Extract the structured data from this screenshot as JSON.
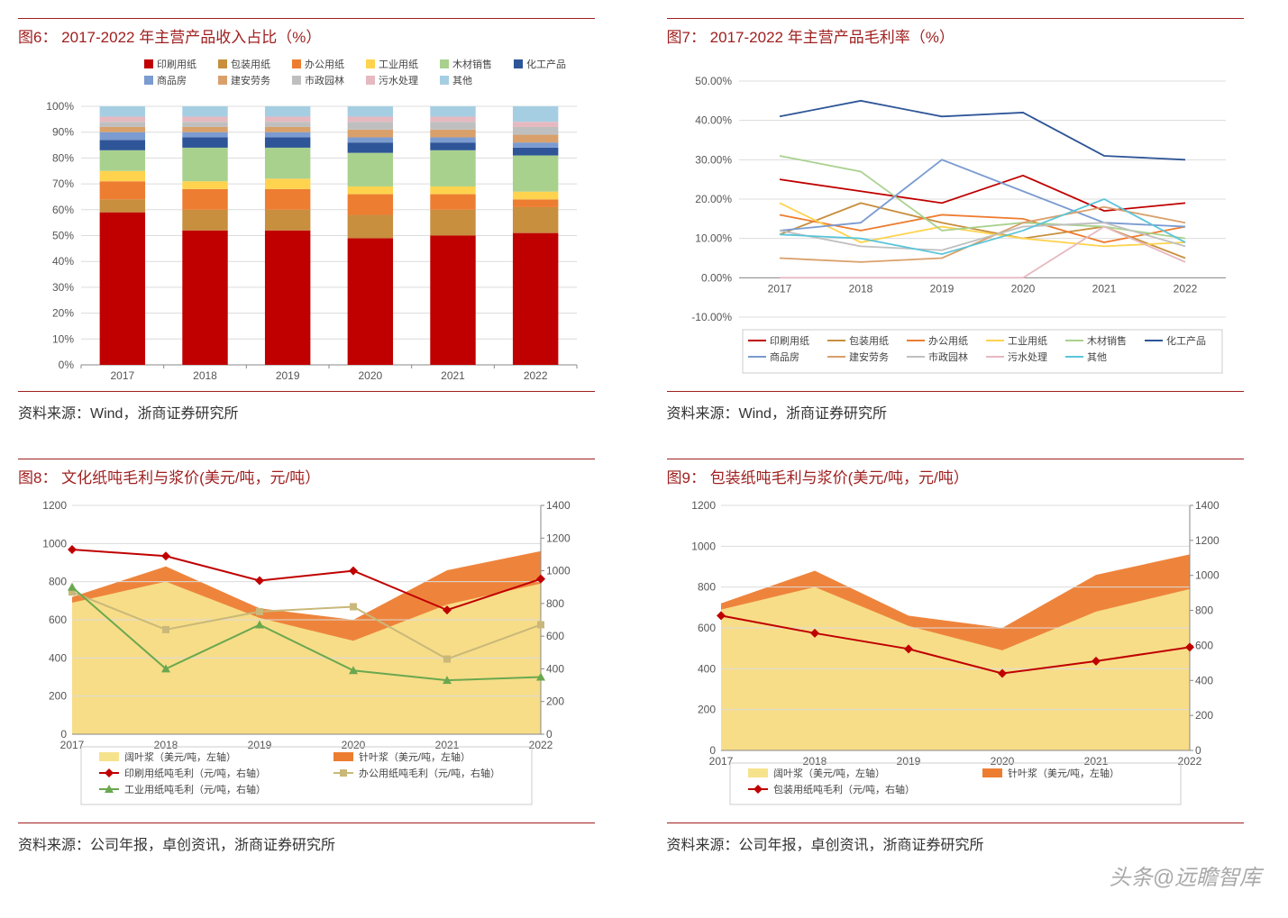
{
  "watermark": "头条@远瞻智库",
  "fig6": {
    "title": "图6：   2017-2022 年主营产品收入占比（%）",
    "source": "资料来源：Wind，浙商证券研究所",
    "type": "stacked-bar",
    "categories": [
      "2017",
      "2018",
      "2019",
      "2020",
      "2021",
      "2022"
    ],
    "ylim": [
      0,
      100
    ],
    "ytick_step": 10,
    "ytick_suffix": "%",
    "legend_cols": 6,
    "series": [
      {
        "name": "印刷用纸",
        "color": "#c00000",
        "values": [
          59,
          52,
          52,
          49,
          50,
          51
        ]
      },
      {
        "name": "包装用纸",
        "color": "#c78f3e",
        "values": [
          5,
          8,
          8,
          9,
          10,
          10
        ]
      },
      {
        "name": "办公用纸",
        "color": "#ed7d31",
        "values": [
          7,
          8,
          8,
          8,
          6,
          3
        ]
      },
      {
        "name": "工业用纸",
        "color": "#ffd34e",
        "values": [
          4,
          3,
          4,
          3,
          3,
          3
        ]
      },
      {
        "name": "木材销售",
        "color": "#a9d18e",
        "values": [
          8,
          13,
          12,
          13,
          14,
          14
        ]
      },
      {
        "name": "化工产品",
        "color": "#2e5597",
        "values": [
          4,
          4,
          4,
          4,
          3,
          3
        ]
      },
      {
        "name": "商品房",
        "color": "#7b9bd1",
        "values": [
          3,
          2,
          2,
          2,
          2,
          2
        ]
      },
      {
        "name": "建安劳务",
        "color": "#d9a06b",
        "values": [
          2,
          2,
          2,
          3,
          3,
          3
        ]
      },
      {
        "name": "市政园林",
        "color": "#bfbfbf",
        "values": [
          2,
          2,
          2,
          3,
          3,
          3
        ]
      },
      {
        "name": "污水处理",
        "color": "#e6b9c0",
        "values": [
          2,
          2,
          2,
          2,
          2,
          2
        ]
      },
      {
        "name": "其他",
        "color": "#a6cee3",
        "values": [
          4,
          4,
          4,
          4,
          4,
          6
        ]
      }
    ],
    "background_color": "#ffffff",
    "grid_color": "#dcdcdc",
    "bar_width": 0.55
  },
  "fig7": {
    "title": "图7：   2017-2022 年主营产品毛利率（%）",
    "source": "资料来源：Wind，浙商证券研究所",
    "type": "line",
    "categories": [
      "2017",
      "2018",
      "2019",
      "2020",
      "2021",
      "2022"
    ],
    "ylim": [
      -10,
      50
    ],
    "ytick_step": 10,
    "ytick_suffix": ".00%",
    "series": [
      {
        "name": "印刷用纸",
        "color": "#c00000",
        "values": [
          25,
          22,
          19,
          26,
          17,
          19
        ]
      },
      {
        "name": "包装用纸",
        "color": "#c78f3e",
        "values": [
          11,
          19,
          14,
          10,
          13,
          5
        ]
      },
      {
        "name": "办公用纸",
        "color": "#ed7d31",
        "values": [
          16,
          12,
          16,
          15,
          9,
          13
        ]
      },
      {
        "name": "工业用纸",
        "color": "#ffd34e",
        "values": [
          19,
          9,
          13,
          10,
          8,
          9
        ]
      },
      {
        "name": "木材销售",
        "color": "#a9d18e",
        "values": [
          31,
          27,
          12,
          14,
          13,
          10
        ]
      },
      {
        "name": "化工产品",
        "color": "#2e5597",
        "values": [
          41,
          45,
          41,
          42,
          31,
          30
        ]
      },
      {
        "name": "商品房",
        "color": "#7b9bd1",
        "values": [
          12,
          14,
          30,
          22,
          14,
          13
        ]
      },
      {
        "name": "建安劳务",
        "color": "#d9a06b",
        "values": [
          5,
          4,
          5,
          14,
          18,
          14
        ]
      },
      {
        "name": "市政园林",
        "color": "#bfbfbf",
        "values": [
          12,
          8,
          7,
          13,
          14,
          8
        ]
      },
      {
        "name": "污水处理",
        "color": "#e6b9c0",
        "values": [
          0,
          0,
          0,
          0,
          13,
          4
        ]
      },
      {
        "name": "其他",
        "color": "#5bc5d9",
        "values": [
          11,
          10,
          6,
          12,
          20,
          9
        ]
      }
    ],
    "background_color": "#ffffff",
    "grid_color": "#dcdcdc",
    "line_width": 1.8
  },
  "fig8": {
    "title": "图8：   文化纸吨毛利与浆价(美元/吨，元/吨）",
    "source": "资料来源：公司年报，卓创资讯，浙商证券研究所",
    "type": "combo",
    "categories": [
      "2017",
      "2018",
      "2019",
      "2020",
      "2021",
      "2022"
    ],
    "ylim_left": [
      0,
      1200
    ],
    "ytick_left": 200,
    "ylim_right": [
      0,
      1400
    ],
    "ytick_right": 200,
    "areas": [
      {
        "name": "阔叶浆（美元/吨，左轴）",
        "color": "#f7e28c",
        "values": [
          690,
          800,
          610,
          490,
          680,
          790
        ]
      },
      {
        "name": "针叶浆（美元/吨，左轴）",
        "color": "#ed7d31",
        "values": [
          720,
          880,
          660,
          600,
          860,
          960
        ]
      }
    ],
    "lines": [
      {
        "name": "印刷用纸吨毛利（元/吨，右轴）",
        "color": "#c00000",
        "marker": "diamond",
        "values": [
          1130,
          1090,
          940,
          1000,
          760,
          950
        ]
      },
      {
        "name": "办公用纸吨毛利（元/吨，右轴）",
        "color": "#c9b879",
        "marker": "square",
        "values": [
          870,
          640,
          750,
          780,
          460,
          670
        ]
      },
      {
        "name": "工业用纸吨毛利（元/吨，右轴）",
        "color": "#6aa84f",
        "marker": "triangle",
        "values": [
          900,
          400,
          670,
          390,
          330,
          350
        ]
      }
    ],
    "line_width": 2,
    "grid_color": "#dcdcdc",
    "background_color": "#ffffff"
  },
  "fig9": {
    "title": "图9：   包装纸吨毛利与浆价(美元/吨，元/吨）",
    "source": "资料来源：公司年报，卓创资讯，浙商证券研究所",
    "type": "combo",
    "categories": [
      "2017",
      "2018",
      "2019",
      "2020",
      "2021",
      "2022"
    ],
    "ylim_left": [
      0,
      1200
    ],
    "ytick_left": 200,
    "ylim_right": [
      0,
      1400
    ],
    "ytick_right": 200,
    "areas": [
      {
        "name": "阔叶浆（美元/吨，左轴）",
        "color": "#f7e28c",
        "values": [
          690,
          800,
          610,
          490,
          680,
          790
        ]
      },
      {
        "name": "针叶浆（美元/吨，左轴）",
        "color": "#ed7d31",
        "values": [
          720,
          880,
          660,
          600,
          860,
          960
        ]
      }
    ],
    "lines": [
      {
        "name": "包装用纸吨毛利（元/吨，右轴）",
        "color": "#c00000",
        "marker": "diamond",
        "values": [
          770,
          670,
          580,
          440,
          510,
          590
        ]
      }
    ],
    "line_width": 2,
    "grid_color": "#dcdcdc",
    "background_color": "#ffffff"
  }
}
